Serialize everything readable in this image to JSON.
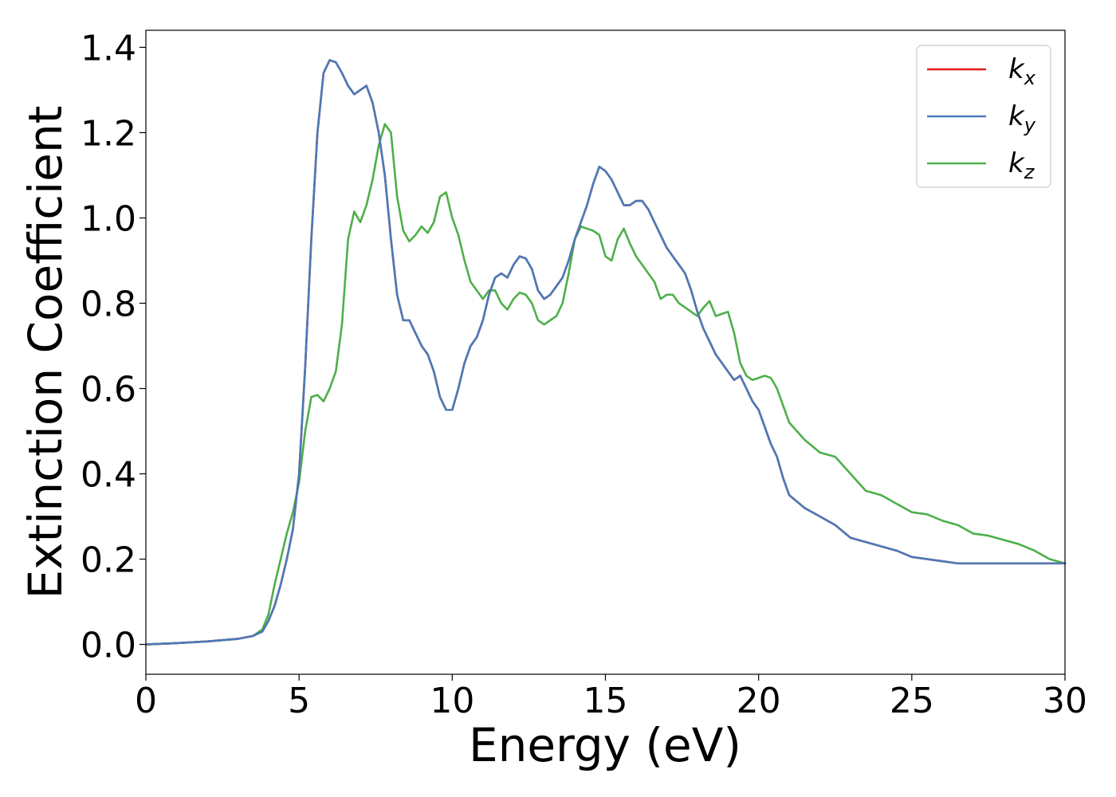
{
  "chart_data": {
    "type": "line",
    "xlabel": "Energy (eV)",
    "ylabel": "Extinction Coefficient",
    "xlim": [
      0,
      30
    ],
    "ylim": [
      -0.07,
      1.44
    ],
    "xticks": [
      0,
      5,
      10,
      15,
      20,
      25,
      30
    ],
    "yticks": [
      0.0,
      0.2,
      0.4,
      0.6,
      0.8,
      1.0,
      1.2,
      1.4
    ],
    "legend_position": "top-right",
    "grid": false,
    "series": [
      {
        "name": "k",
        "subscript": "x",
        "color": "#e41a1c",
        "x": [
          0,
          1,
          2,
          3,
          3.5,
          3.8,
          4.0,
          4.2,
          4.4,
          4.6,
          4.8,
          5.0,
          5.2,
          5.4,
          5.6,
          5.8,
          6.0,
          6.2,
          6.4,
          6.6,
          6.8,
          7.0,
          7.2,
          7.4,
          7.6,
          7.8,
          8.0,
          8.2,
          8.4,
          8.6,
          8.8,
          9.0,
          9.2,
          9.4,
          9.6,
          9.8,
          10.0,
          10.2,
          10.4,
          10.6,
          10.8,
          11.0,
          11.2,
          11.4,
          11.6,
          11.8,
          12.0,
          12.2,
          12.4,
          12.6,
          12.8,
          13.0,
          13.2,
          13.4,
          13.6,
          13.8,
          14.0,
          14.2,
          14.4,
          14.6,
          14.8,
          15.0,
          15.2,
          15.4,
          15.6,
          15.8,
          16.0,
          16.2,
          16.4,
          16.6,
          16.8,
          17.0,
          17.2,
          17.4,
          17.6,
          17.8,
          18.0,
          18.2,
          18.4,
          18.6,
          18.8,
          19.0,
          19.2,
          19.4,
          19.6,
          19.8,
          20.0,
          20.2,
          20.4,
          20.6,
          20.8,
          21.0,
          21.5,
          22.0,
          22.5,
          23.0,
          23.5,
          24.0,
          24.5,
          25.0,
          25.5,
          26.0,
          26.5,
          27.0,
          27.5,
          28.0,
          28.5,
          29.0,
          29.5,
          30.0
        ],
        "y": [
          0.0,
          0.003,
          0.007,
          0.013,
          0.02,
          0.03,
          0.055,
          0.09,
          0.14,
          0.2,
          0.27,
          0.4,
          0.65,
          0.95,
          1.2,
          1.34,
          1.37,
          1.365,
          1.34,
          1.31,
          1.29,
          1.3,
          1.31,
          1.27,
          1.2,
          1.1,
          0.95,
          0.82,
          0.76,
          0.76,
          0.73,
          0.7,
          0.68,
          0.64,
          0.58,
          0.55,
          0.55,
          0.6,
          0.66,
          0.7,
          0.72,
          0.76,
          0.82,
          0.86,
          0.87,
          0.86,
          0.89,
          0.91,
          0.905,
          0.88,
          0.83,
          0.81,
          0.82,
          0.84,
          0.86,
          0.9,
          0.95,
          0.99,
          1.03,
          1.08,
          1.12,
          1.11,
          1.09,
          1.06,
          1.03,
          1.03,
          1.04,
          1.04,
          1.02,
          0.99,
          0.96,
          0.93,
          0.91,
          0.89,
          0.87,
          0.83,
          0.78,
          0.74,
          0.71,
          0.68,
          0.66,
          0.64,
          0.62,
          0.63,
          0.6,
          0.57,
          0.55,
          0.51,
          0.47,
          0.44,
          0.39,
          0.35,
          0.32,
          0.3,
          0.28,
          0.25,
          0.24,
          0.23,
          0.22,
          0.205,
          0.2,
          0.195,
          0.19,
          0.19,
          0.19,
          0.19,
          0.19,
          0.19,
          0.19,
          0.19
        ]
      },
      {
        "name": "k",
        "subscript": "y",
        "color": "#4a7ab8",
        "x": [
          0,
          1,
          2,
          3,
          3.5,
          3.8,
          4.0,
          4.2,
          4.4,
          4.6,
          4.8,
          5.0,
          5.2,
          5.4,
          5.6,
          5.8,
          6.0,
          6.2,
          6.4,
          6.6,
          6.8,
          7.0,
          7.2,
          7.4,
          7.6,
          7.8,
          8.0,
          8.2,
          8.4,
          8.6,
          8.8,
          9.0,
          9.2,
          9.4,
          9.6,
          9.8,
          10.0,
          10.2,
          10.4,
          10.6,
          10.8,
          11.0,
          11.2,
          11.4,
          11.6,
          11.8,
          12.0,
          12.2,
          12.4,
          12.6,
          12.8,
          13.0,
          13.2,
          13.4,
          13.6,
          13.8,
          14.0,
          14.2,
          14.4,
          14.6,
          14.8,
          15.0,
          15.2,
          15.4,
          15.6,
          15.8,
          16.0,
          16.2,
          16.4,
          16.6,
          16.8,
          17.0,
          17.2,
          17.4,
          17.6,
          17.8,
          18.0,
          18.2,
          18.4,
          18.6,
          18.8,
          19.0,
          19.2,
          19.4,
          19.6,
          19.8,
          20.0,
          20.2,
          20.4,
          20.6,
          20.8,
          21.0,
          21.5,
          22.0,
          22.5,
          23.0,
          23.5,
          24.0,
          24.5,
          25.0,
          25.5,
          26.0,
          26.5,
          27.0,
          27.5,
          28.0,
          28.5,
          29.0,
          29.5,
          30.0
        ],
        "y": [
          0.0,
          0.003,
          0.007,
          0.013,
          0.02,
          0.03,
          0.055,
          0.09,
          0.14,
          0.2,
          0.27,
          0.4,
          0.65,
          0.95,
          1.2,
          1.34,
          1.37,
          1.365,
          1.34,
          1.31,
          1.29,
          1.3,
          1.31,
          1.27,
          1.2,
          1.1,
          0.95,
          0.82,
          0.76,
          0.76,
          0.73,
          0.7,
          0.68,
          0.64,
          0.58,
          0.55,
          0.55,
          0.6,
          0.66,
          0.7,
          0.72,
          0.76,
          0.82,
          0.86,
          0.87,
          0.86,
          0.89,
          0.91,
          0.905,
          0.88,
          0.83,
          0.81,
          0.82,
          0.84,
          0.86,
          0.9,
          0.95,
          0.99,
          1.03,
          1.08,
          1.12,
          1.11,
          1.09,
          1.06,
          1.03,
          1.03,
          1.04,
          1.04,
          1.02,
          0.99,
          0.96,
          0.93,
          0.91,
          0.89,
          0.87,
          0.83,
          0.78,
          0.74,
          0.71,
          0.68,
          0.66,
          0.64,
          0.62,
          0.63,
          0.6,
          0.57,
          0.55,
          0.51,
          0.47,
          0.44,
          0.39,
          0.35,
          0.32,
          0.3,
          0.28,
          0.25,
          0.24,
          0.23,
          0.22,
          0.205,
          0.2,
          0.195,
          0.19,
          0.19,
          0.19,
          0.19,
          0.19,
          0.19,
          0.19,
          0.19
        ]
      },
      {
        "name": "k",
        "subscript": "z",
        "color": "#4daf4a",
        "x": [
          0,
          1,
          2,
          3,
          3.5,
          3.8,
          4.0,
          4.2,
          4.4,
          4.6,
          4.8,
          5.0,
          5.2,
          5.4,
          5.6,
          5.8,
          6.0,
          6.2,
          6.4,
          6.6,
          6.8,
          7.0,
          7.2,
          7.4,
          7.6,
          7.8,
          8.0,
          8.2,
          8.4,
          8.6,
          8.8,
          9.0,
          9.2,
          9.4,
          9.6,
          9.8,
          10.0,
          10.2,
          10.4,
          10.6,
          10.8,
          11.0,
          11.2,
          11.4,
          11.6,
          11.8,
          12.0,
          12.2,
          12.4,
          12.6,
          12.8,
          13.0,
          13.2,
          13.4,
          13.6,
          13.8,
          14.0,
          14.2,
          14.4,
          14.6,
          14.8,
          15.0,
          15.2,
          15.4,
          15.6,
          15.8,
          16.0,
          16.2,
          16.4,
          16.6,
          16.8,
          17.0,
          17.2,
          17.4,
          17.6,
          17.8,
          18.0,
          18.2,
          18.4,
          18.6,
          18.8,
          19.0,
          19.2,
          19.4,
          19.6,
          19.8,
          20.0,
          20.2,
          20.4,
          20.6,
          20.8,
          21.0,
          21.5,
          22.0,
          22.5,
          23.0,
          23.5,
          24.0,
          24.5,
          25.0,
          25.5,
          26.0,
          26.5,
          27.0,
          27.5,
          28.0,
          28.5,
          29.0,
          29.5,
          30.0
        ],
        "y": [
          0.0,
          0.003,
          0.007,
          0.013,
          0.02,
          0.035,
          0.07,
          0.14,
          0.2,
          0.26,
          0.31,
          0.38,
          0.5,
          0.58,
          0.585,
          0.57,
          0.6,
          0.64,
          0.75,
          0.95,
          1.015,
          0.99,
          1.03,
          1.09,
          1.17,
          1.22,
          1.2,
          1.05,
          0.97,
          0.945,
          0.96,
          0.98,
          0.965,
          0.99,
          1.05,
          1.06,
          1.0,
          0.96,
          0.9,
          0.85,
          0.83,
          0.81,
          0.83,
          0.83,
          0.8,
          0.785,
          0.81,
          0.825,
          0.82,
          0.8,
          0.76,
          0.75,
          0.76,
          0.77,
          0.8,
          0.87,
          0.95,
          0.98,
          0.975,
          0.97,
          0.96,
          0.91,
          0.9,
          0.95,
          0.975,
          0.94,
          0.91,
          0.89,
          0.87,
          0.85,
          0.81,
          0.82,
          0.82,
          0.8,
          0.79,
          0.78,
          0.77,
          0.79,
          0.805,
          0.77,
          0.775,
          0.78,
          0.73,
          0.66,
          0.63,
          0.62,
          0.625,
          0.63,
          0.625,
          0.6,
          0.56,
          0.52,
          0.48,
          0.45,
          0.44,
          0.4,
          0.36,
          0.35,
          0.33,
          0.31,
          0.305,
          0.29,
          0.28,
          0.26,
          0.255,
          0.245,
          0.235,
          0.22,
          0.2,
          0.19
        ]
      }
    ]
  }
}
